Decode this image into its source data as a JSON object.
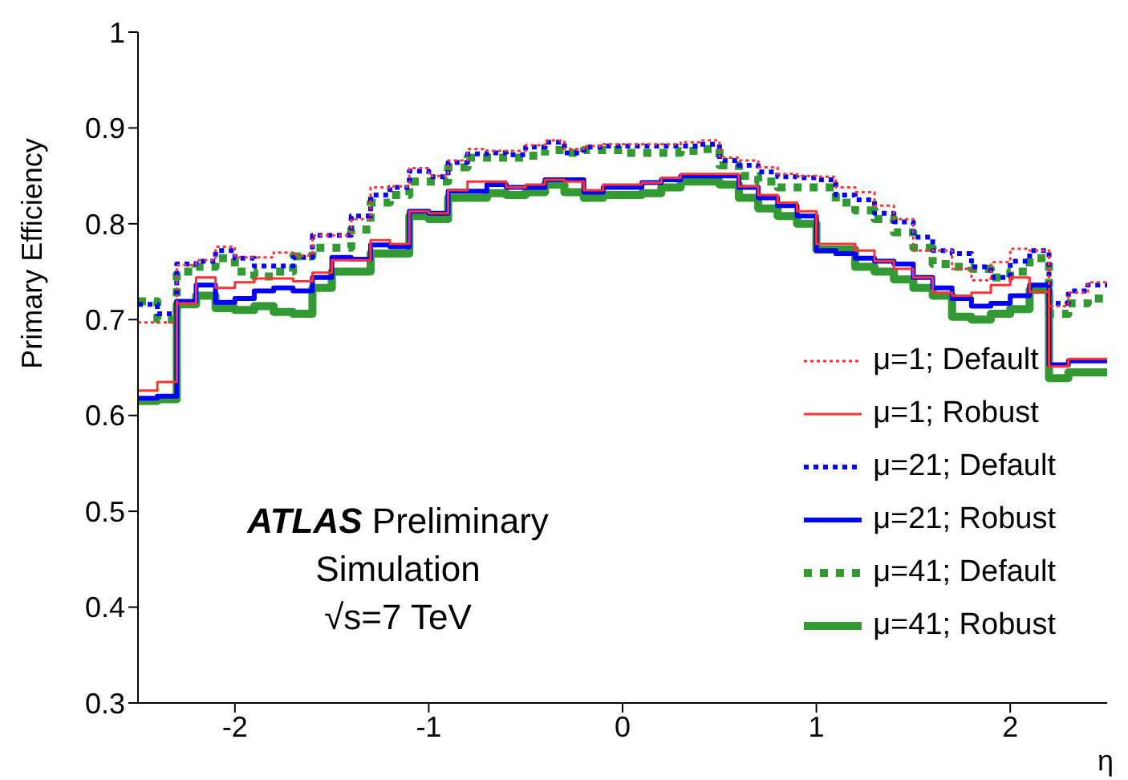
{
  "chart_data": {
    "type": "step",
    "xlabel": "η",
    "ylabel": "Primary Efficiency",
    "x": [
      -2.5,
      -2.4,
      -2.3,
      -2.2,
      -2.1,
      -2.0,
      -1.9,
      -1.8,
      -1.7,
      -1.6,
      -1.5,
      -1.4,
      -1.3,
      -1.2,
      -1.1,
      -1.0,
      -0.9,
      -0.8,
      -0.7,
      -0.6,
      -0.5,
      -0.4,
      -0.3,
      -0.2,
      -0.1,
      0.0,
      0.1,
      0.2,
      0.3,
      0.4,
      0.5,
      0.6,
      0.7,
      0.8,
      0.9,
      1.0,
      1.1,
      1.2,
      1.3,
      1.4,
      1.5,
      1.6,
      1.7,
      1.8,
      1.9,
      2.0,
      2.1,
      2.2,
      2.3,
      2.4,
      2.5
    ],
    "xlim": [
      -2.5,
      2.5
    ],
    "xticks": [
      -2,
      -1,
      0,
      1,
      2
    ],
    "ylim": [
      0.3,
      1
    ],
    "yticks": [
      0.3,
      0.4,
      0.5,
      0.6,
      0.7,
      0.8,
      0.9,
      1
    ],
    "legend": "bottom right",
    "annotations": [
      "ATLAS Preliminary",
      "Simulation",
      "√s=7 TeV"
    ],
    "series": [
      {
        "name": "μ=1; Default",
        "color": "#ff3333",
        "line_style": "dotted",
        "values": [
          0.697,
          0.697,
          0.757,
          0.762,
          0.776,
          0.765,
          0.765,
          0.77,
          0.767,
          0.788,
          0.788,
          0.805,
          0.838,
          0.839,
          0.858,
          0.85,
          0.866,
          0.878,
          0.876,
          0.876,
          0.882,
          0.887,
          0.878,
          0.881,
          0.883,
          0.883,
          0.883,
          0.883,
          0.885,
          0.887,
          0.869,
          0.866,
          0.859,
          0.852,
          0.85,
          0.849,
          0.838,
          0.833,
          0.819,
          0.805,
          0.772,
          0.772,
          0.753,
          0.741,
          0.76,
          0.774,
          0.772,
          0.714,
          0.728,
          0.739,
          0.739
        ]
      },
      {
        "name": "μ=1; Robust",
        "color": "#ff3333",
        "line_style": "solid",
        "values": [
          0.626,
          0.635,
          0.717,
          0.744,
          0.733,
          0.739,
          0.743,
          0.743,
          0.74,
          0.749,
          0.762,
          0.762,
          0.783,
          0.779,
          0.813,
          0.811,
          0.835,
          0.844,
          0.844,
          0.838,
          0.841,
          0.846,
          0.844,
          0.835,
          0.841,
          0.841,
          0.843,
          0.848,
          0.852,
          0.852,
          0.852,
          0.839,
          0.83,
          0.822,
          0.813,
          0.779,
          0.779,
          0.772,
          0.761,
          0.753,
          0.744,
          0.728,
          0.725,
          0.728,
          0.736,
          0.744,
          0.729,
          0.651,
          0.659,
          0.659,
          0.659
        ]
      },
      {
        "name": "μ=21; Default",
        "color": "#0000ff",
        "line_style": "dotted",
        "values": [
          0.716,
          0.706,
          0.758,
          0.761,
          0.772,
          0.764,
          0.756,
          0.756,
          0.765,
          0.788,
          0.788,
          0.808,
          0.83,
          0.838,
          0.855,
          0.849,
          0.864,
          0.873,
          0.874,
          0.872,
          0.88,
          0.885,
          0.874,
          0.88,
          0.881,
          0.881,
          0.881,
          0.881,
          0.881,
          0.883,
          0.866,
          0.861,
          0.854,
          0.849,
          0.848,
          0.846,
          0.83,
          0.825,
          0.811,
          0.802,
          0.786,
          0.772,
          0.769,
          0.755,
          0.744,
          0.761,
          0.772,
          0.717,
          0.73,
          0.736,
          0.736
        ]
      },
      {
        "name": "μ=21; Robust",
        "color": "#0000ff",
        "line_style": "solid",
        "values": [
          0.618,
          0.62,
          0.719,
          0.736,
          0.718,
          0.722,
          0.73,
          0.733,
          0.73,
          0.744,
          0.765,
          0.763,
          0.778,
          0.776,
          0.813,
          0.811,
          0.834,
          0.834,
          0.841,
          0.838,
          0.838,
          0.846,
          0.846,
          0.833,
          0.838,
          0.838,
          0.843,
          0.846,
          0.85,
          0.85,
          0.85,
          0.838,
          0.827,
          0.819,
          0.808,
          0.772,
          0.769,
          0.764,
          0.761,
          0.758,
          0.744,
          0.733,
          0.722,
          0.714,
          0.717,
          0.725,
          0.736,
          0.653,
          0.657,
          0.657,
          0.657
        ]
      },
      {
        "name": "μ=41; Default",
        "color": "#339933",
        "line_style": "dotted",
        "values": [
          0.719,
          0.7,
          0.75,
          0.755,
          0.764,
          0.75,
          0.745,
          0.75,
          0.766,
          0.775,
          0.775,
          0.794,
          0.822,
          0.83,
          0.844,
          0.844,
          0.859,
          0.869,
          0.869,
          0.869,
          0.871,
          0.877,
          0.874,
          0.877,
          0.877,
          0.874,
          0.874,
          0.874,
          0.876,
          0.878,
          0.861,
          0.85,
          0.844,
          0.838,
          0.838,
          0.838,
          0.822,
          0.814,
          0.805,
          0.791,
          0.775,
          0.758,
          0.755,
          0.753,
          0.744,
          0.75,
          0.764,
          0.706,
          0.717,
          0.722,
          0.722
        ]
      },
      {
        "name": "μ=41; Robust",
        "color": "#339933",
        "line_style": "solid",
        "values": [
          0.615,
          0.617,
          0.716,
          0.725,
          0.712,
          0.71,
          0.714,
          0.708,
          0.706,
          0.733,
          0.75,
          0.75,
          0.769,
          0.769,
          0.808,
          0.805,
          0.827,
          0.827,
          0.832,
          0.83,
          0.833,
          0.841,
          0.833,
          0.827,
          0.83,
          0.83,
          0.832,
          0.838,
          0.844,
          0.844,
          0.841,
          0.827,
          0.816,
          0.808,
          0.8,
          0.773,
          0.773,
          0.755,
          0.75,
          0.742,
          0.733,
          0.725,
          0.703,
          0.7,
          0.706,
          0.711,
          0.731,
          0.639,
          0.645,
          0.645,
          0.645
        ]
      }
    ]
  }
}
